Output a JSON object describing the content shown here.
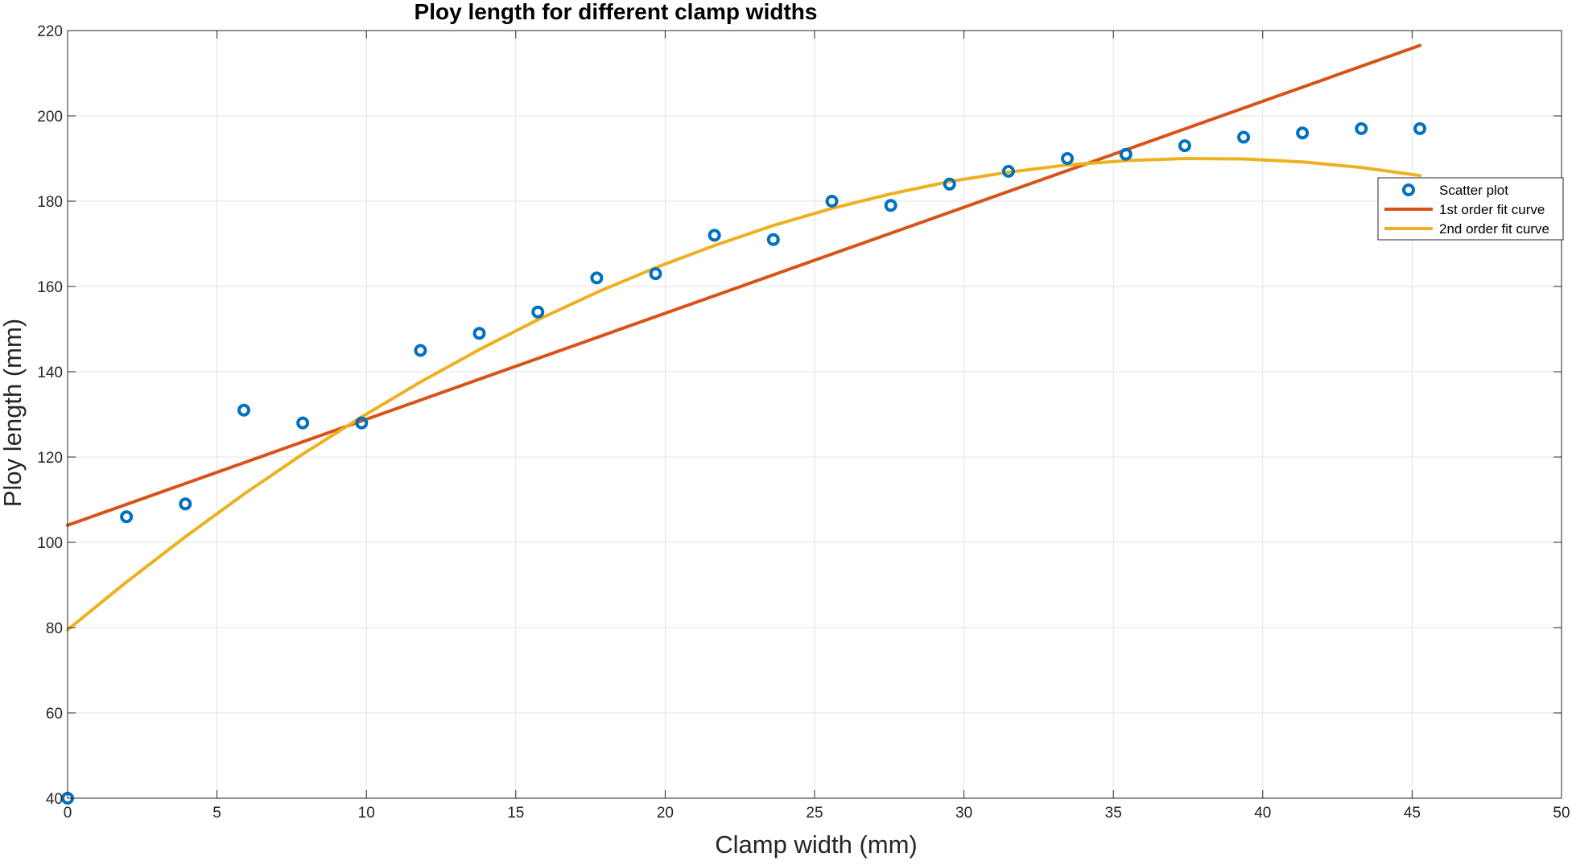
{
  "chart_data": {
    "type": "scatter",
    "title": "Ploy length for different clamp widths",
    "xlabel": "Clamp width (mm)",
    "ylabel": "Ploy length (mm)",
    "xlim": [
      0,
      50
    ],
    "ylim": [
      40,
      220
    ],
    "xticks": [
      0,
      5,
      10,
      15,
      20,
      25,
      30,
      35,
      40,
      45,
      50
    ],
    "yticks": [
      40,
      60,
      80,
      100,
      120,
      140,
      160,
      180,
      200,
      220
    ],
    "grid": true,
    "legend_position": "right",
    "series": [
      {
        "name": "Scatter plot",
        "kind": "scatter",
        "color": "#0072bd",
        "x": [
          0,
          1.97,
          3.94,
          5.9,
          7.87,
          9.84,
          11.81,
          13.78,
          15.74,
          17.71,
          19.68,
          21.65,
          23.62,
          25.58,
          27.55,
          29.52,
          31.49,
          33.46,
          35.42,
          37.39,
          39.36,
          41.33,
          43.3,
          45.26
        ],
        "y": [
          40,
          106,
          109,
          131,
          128,
          128,
          145,
          149,
          154,
          162,
          163,
          172,
          171,
          180,
          179,
          184,
          187,
          190,
          191,
          193,
          195,
          196,
          197,
          197
        ]
      },
      {
        "name": "1st order fit curve",
        "kind": "line",
        "color": "#d95319",
        "x": [
          0,
          45.26
        ],
        "y": [
          104.0,
          216.5
        ]
      },
      {
        "name": "2nd order fit curve",
        "kind": "line",
        "color": "#edb120",
        "x": [
          0,
          1.97,
          3.94,
          5.9,
          7.87,
          9.84,
          11.81,
          13.78,
          15.74,
          17.71,
          19.68,
          21.65,
          23.62,
          25.58,
          27.55,
          29.52,
          31.49,
          33.46,
          35.42,
          37.39,
          39.36,
          41.33,
          43.3,
          45.26
        ],
        "y": [
          79.5,
          90.7,
          101.3,
          111.3,
          120.7,
          129.4,
          137.6,
          145.2,
          152.2,
          158.6,
          164.4,
          169.6,
          174.3,
          178.3,
          181.7,
          184.6,
          186.8,
          188.5,
          189.5,
          190.0,
          189.9,
          189.2,
          187.9,
          186.0
        ]
      }
    ]
  }
}
